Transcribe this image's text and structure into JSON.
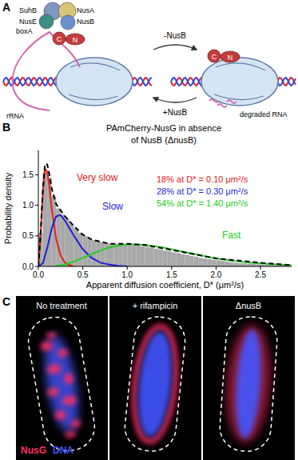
{
  "panel_a": {
    "label": "A",
    "proteins": [
      "SuhB",
      "NusE",
      "NusA",
      "NusB"
    ],
    "site": "boxA",
    "nusg_termini": [
      "C",
      "N"
    ],
    "rna": "rRNA",
    "arrow_forward": "-NusB",
    "arrow_back": "+NusB",
    "degraded": "degraded RNA"
  },
  "chart_data": {
    "type": "histogram",
    "panel_label": "B",
    "title": [
      "PAmCherry-NusG in absence",
      "of NusB (ΔnusB)"
    ],
    "x_label": "Apparent diffusion coefficient, D* (μm²/s)",
    "y_label": "Probability density",
    "bins": [
      0,
      0.05,
      0.1,
      0.15,
      0.2,
      0.25,
      0.3,
      0.35,
      0.4,
      0.45,
      0.5,
      0.55,
      0.6,
      0.65,
      0.7,
      0.75,
      0.8,
      0.85,
      0.9,
      0.95,
      1.0,
      1.05,
      1.1,
      1.15,
      1.2,
      1.25,
      1.3,
      1.35,
      1.4,
      1.45,
      1.5,
      1.55,
      1.6,
      1.65,
      1.7,
      1.75,
      1.8,
      1.85,
      1.9,
      1.95,
      2.0,
      2.05,
      2.1,
      2.15,
      2.2,
      2.25,
      2.3,
      2.35,
      2.4,
      2.45,
      2.5,
      2.55,
      2.6,
      2.65,
      2.7,
      2.75,
      2.8
    ],
    "values": [
      0.55,
      1.55,
      1.45,
      1.15,
      0.95,
      0.85,
      0.78,
      0.7,
      0.62,
      0.55,
      0.5,
      0.46,
      0.43,
      0.41,
      0.39,
      0.38,
      0.37,
      0.37,
      0.36,
      0.36,
      0.35,
      0.35,
      0.34,
      0.33,
      0.32,
      0.31,
      0.29,
      0.28,
      0.26,
      0.25,
      0.23,
      0.22,
      0.2,
      0.19,
      0.17,
      0.16,
      0.14,
      0.13,
      0.12,
      0.11,
      0.1,
      0.09,
      0.08,
      0.07,
      0.06,
      0.055,
      0.05,
      0.045,
      0.04,
      0.035,
      0.03,
      0.028,
      0.025,
      0.022,
      0.02,
      0.018
    ],
    "color": "#a9a9a9",
    "series": [
      {
        "name": "Very slow",
        "type": "line",
        "color": "#e3201b",
        "line_style": "solid",
        "x": [
          0,
          0.025,
          0.05,
          0.075,
          0.1,
          0.125,
          0.15,
          0.2,
          0.25,
          0.3,
          0.35,
          0.4
        ],
        "values": [
          0,
          0.5,
          1.2,
          1.6,
          1.55,
          1.3,
          0.95,
          0.45,
          0.18,
          0.06,
          0.02,
          0
        ]
      },
      {
        "name": "Slow",
        "type": "line",
        "color": "#1f1fd6",
        "line_style": "solid",
        "x": [
          0,
          0.05,
          0.1,
          0.15,
          0.2,
          0.25,
          0.3,
          0.4,
          0.5,
          0.6,
          0.7,
          0.8,
          0.9,
          1.0
        ],
        "values": [
          0,
          0.05,
          0.3,
          0.62,
          0.82,
          0.84,
          0.75,
          0.5,
          0.28,
          0.14,
          0.06,
          0.03,
          0.01,
          0
        ]
      },
      {
        "name": "Fast",
        "type": "line",
        "color": "#22cc22",
        "line_style": "solid",
        "x": [
          0.2,
          0.3,
          0.4,
          0.5,
          0.6,
          0.7,
          0.8,
          0.9,
          1.0,
          1.1,
          1.2,
          1.4,
          1.6,
          1.8,
          2.0,
          2.2,
          2.4,
          2.6,
          2.85
        ],
        "values": [
          0.01,
          0.03,
          0.08,
          0.14,
          0.2,
          0.26,
          0.31,
          0.34,
          0.36,
          0.36,
          0.35,
          0.31,
          0.25,
          0.19,
          0.13,
          0.09,
          0.06,
          0.04,
          0.02
        ]
      },
      {
        "type": "line",
        "color": "#000000",
        "line_style": "dashed",
        "x": [
          0,
          0.025,
          0.05,
          0.075,
          0.1,
          0.125,
          0.15,
          0.2,
          0.25,
          0.3,
          0.4,
          0.5,
          0.6,
          0.8,
          1.0,
          1.2,
          1.5,
          2.0,
          2.5,
          2.85
        ],
        "values": [
          0,
          0.52,
          1.25,
          1.68,
          1.67,
          1.5,
          1.28,
          1.02,
          0.92,
          0.82,
          0.66,
          0.52,
          0.44,
          0.37,
          0.37,
          0.35,
          0.27,
          0.13,
          0.06,
          0.02
        ]
      }
    ],
    "annotations": [
      {
        "text": "18% at D* = 0.10 μm²/s",
        "color": "#e3201b"
      },
      {
        "text": "28% at D* = 0.30 μm²/s",
        "color": "#1f1fd6"
      },
      {
        "text": "54% at D* = 1.40 μm²/s",
        "color": "#22cc22"
      }
    ],
    "xlim": [
      0,
      2.85
    ],
    "ylim": [
      0,
      1.9
    ],
    "xticks": [
      {
        "value": 0,
        "label": "0.0"
      },
      {
        "value": 0.5,
        "label": "0.5"
      },
      {
        "value": 1,
        "label": "1.0"
      },
      {
        "value": 1.5,
        "label": "1.5"
      },
      {
        "value": 2,
        "label": "2.0"
      },
      {
        "value": 2.5,
        "label": "2.5"
      }
    ],
    "yticks": [
      {
        "value": 0,
        "label": "0.0"
      },
      {
        "value": 0.5,
        "label": "0.5"
      },
      {
        "value": 1,
        "label": "1.0"
      },
      {
        "value": 1.5,
        "label": "1.5"
      }
    ],
    "grid": false
  },
  "panel_c": {
    "label": "C",
    "images": [
      "No treatment",
      "+ rifampicin",
      "ΔnusB"
    ],
    "channels": [
      {
        "name": "NusG",
        "color": "#ff2f62"
      },
      {
        "name": "DNA",
        "color": "#4356ff"
      }
    ]
  }
}
